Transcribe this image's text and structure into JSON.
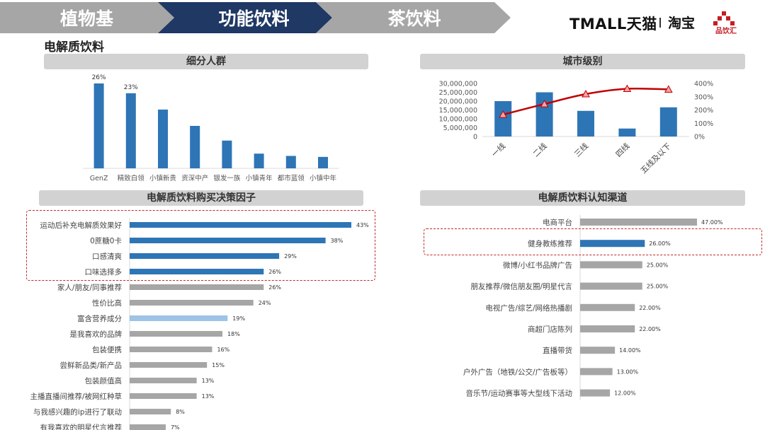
{
  "nav": {
    "tabs": [
      {
        "label": "植物基",
        "color": "#a6a6a6"
      },
      {
        "label": "功能饮料",
        "color": "#1f3864"
      },
      {
        "label": "茶饮料",
        "color": "#a6a6a6"
      }
    ]
  },
  "brands": {
    "tmall": "TMALL天猫",
    "taobao": "淘宝",
    "pinyinhui": "品饮汇"
  },
  "section_title": "电解质饮料",
  "panels": {
    "segments": "细分人群",
    "city": "城市级别",
    "factors": "电解质饮料购买决策因子",
    "channels": "电解质饮料认知渠道"
  },
  "chart_data": [
    {
      "id": "segments",
      "type": "bar",
      "title": "细分人群",
      "categories": [
        "GenZ",
        "精致白领",
        "小镇新贵",
        "资深中产",
        "银发一族",
        "小镇青年",
        "都市蓝领",
        "小镇中年"
      ],
      "values": [
        26,
        23,
        18,
        13,
        8.5,
        4.5,
        3.8,
        3.5
      ],
      "data_labels": [
        "26%",
        "23%",
        "",
        "",
        "",
        "",
        "",
        ""
      ],
      "colors": {
        "bar": "#2e75b6"
      }
    },
    {
      "id": "city",
      "type": "bar",
      "title": "城市级别",
      "categories": [
        "一线",
        "二线",
        "三线",
        "四线",
        "五线及以下"
      ],
      "series": [
        {
          "name": "",
          "type": "bar",
          "axis": "left",
          "values": [
            20000000,
            25000000,
            14500000,
            4500000,
            16500000
          ]
        },
        {
          "name": "",
          "type": "line",
          "axis": "right",
          "values": [
            165,
            245,
            320,
            360,
            355
          ]
        }
      ],
      "left_axis": {
        "min": 0,
        "max": 30000000,
        "ticks": [
          "0",
          "5,000,000",
          "10,000,000",
          "15,000,000",
          "20,000,000",
          "25,000,000",
          "30,000,000"
        ]
      },
      "right_axis": {
        "min": 0,
        "max": 400,
        "ticks": [
          "0%",
          "100%",
          "200%",
          "300%",
          "400%"
        ]
      },
      "colors": {
        "bar": "#2e75b6",
        "line": "#c00000",
        "marker": "#f4a3a3"
      }
    },
    {
      "id": "factors",
      "type": "bar",
      "orientation": "horizontal",
      "title": "电解质饮料购买决策因子",
      "categories": [
        "运动后补充电解质效果好",
        "0蔗糖0卡",
        "口感清爽",
        "口味选择多",
        "家人/朋友/同事推荐",
        "性价比高",
        "富含营养成分",
        "是我喜欢的品牌",
        "包装便携",
        "尝鲜新品类/新产品",
        "包装颜值高",
        "主播直播间推荐/被网红种草",
        "与我感兴趣的ip进行了联动",
        "有我喜欢的明星代言推荐"
      ],
      "values": [
        43,
        38,
        29,
        26,
        26,
        24,
        19,
        18,
        16,
        15,
        13,
        13,
        8,
        7
      ],
      "labels": [
        "43%",
        "38%",
        "29%",
        "26%",
        "26%",
        "24%",
        "19%",
        "18%",
        "16%",
        "15%",
        "13%",
        "13%",
        "8%",
        "7%"
      ],
      "highlight": [
        0,
        1,
        2,
        3
      ],
      "light": [
        6
      ],
      "colors": {
        "highlight": "#2e75b6",
        "light": "#9dc3e6",
        "default": "#a6a6a6"
      }
    },
    {
      "id": "channels",
      "type": "bar",
      "orientation": "horizontal",
      "title": "电解质饮料认知渠道",
      "categories": [
        "电商平台",
        "健身教练推荐",
        "微博/小红书品牌广告",
        "朋友推荐/微信朋友圈/明星代言",
        "电视广告/综艺/网络热播剧",
        "商超门店陈列",
        "直播带货",
        "户外广告（地铁/公交/广告板等）",
        "音乐节/运动赛事等大型线下活动"
      ],
      "values": [
        47,
        26,
        25,
        25,
        22,
        22,
        14,
        13,
        12
      ],
      "labels": [
        "47.00%",
        "26.00%",
        "25.00%",
        "25.00%",
        "22.00%",
        "22.00%",
        "14.00%",
        "13.00%",
        "12.00%"
      ],
      "highlight": [
        1
      ],
      "colors": {
        "highlight": "#2e75b6",
        "default": "#a6a6a6"
      }
    }
  ]
}
